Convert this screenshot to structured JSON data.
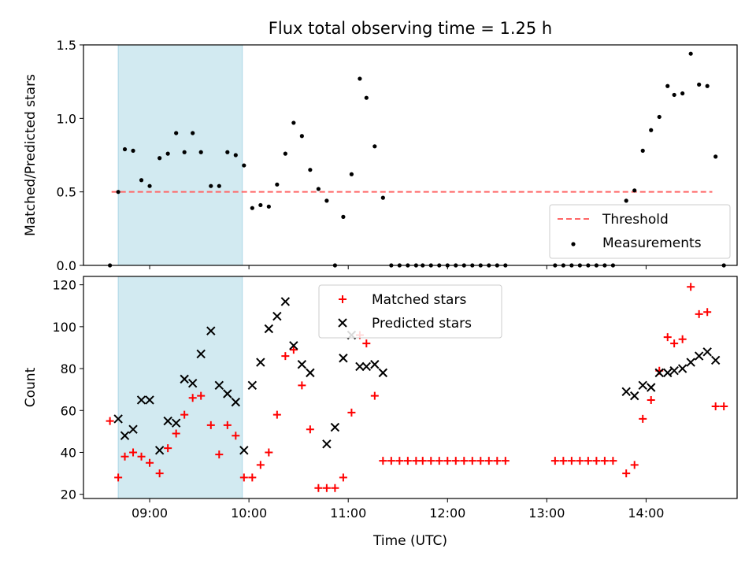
{
  "chart_data": [
    {
      "type": "scatter",
      "title": "Flux total observing time = 1.25 h",
      "ylabel": "Matched/Predicted stars",
      "xlabel": "",
      "xlim": [
        "08:20",
        "14:55"
      ],
      "ylim": [
        0,
        1.5
      ],
      "yticks": [
        "0.0",
        "0.5",
        "1.0",
        "1.5"
      ],
      "x_tick_labels": [],
      "shaded_span": [
        "08:41",
        "09:56"
      ],
      "shaded_color": "#add8e6",
      "threshold": {
        "name": "Threshold",
        "value": 0.5,
        "x": [
          "08:37",
          "14:40"
        ],
        "color": "#ff6666",
        "style": "dashed"
      },
      "legend": {
        "placement": "lower right",
        "entries": [
          "Threshold",
          "Measurements"
        ]
      },
      "series": [
        {
          "name": "Measurements",
          "marker": "dot",
          "color": "#000000",
          "points": [
            [
              "08:36",
              0.0
            ],
            [
              "08:41",
              0.5
            ],
            [
              "08:45",
              0.79
            ],
            [
              "08:50",
              0.78
            ],
            [
              "08:55",
              0.58
            ],
            [
              "09:00",
              0.54
            ],
            [
              "09:06",
              0.73
            ],
            [
              "09:11",
              0.76
            ],
            [
              "09:16",
              0.9
            ],
            [
              "09:21",
              0.77
            ],
            [
              "09:26",
              0.9
            ],
            [
              "09:31",
              0.77
            ],
            [
              "09:37",
              0.54
            ],
            [
              "09:42",
              0.54
            ],
            [
              "09:47",
              0.77
            ],
            [
              "09:52",
              0.75
            ],
            [
              "09:57",
              0.68
            ],
            [
              "10:02",
              0.39
            ],
            [
              "10:07",
              0.41
            ],
            [
              "10:12",
              0.4
            ],
            [
              "10:17",
              0.55
            ],
            [
              "10:22",
              0.76
            ],
            [
              "10:27",
              0.97
            ],
            [
              "10:32",
              0.88
            ],
            [
              "10:37",
              0.65
            ],
            [
              "10:42",
              0.52
            ],
            [
              "10:47",
              0.44
            ],
            [
              "10:52",
              0.0
            ],
            [
              "10:57",
              0.33
            ],
            [
              "11:02",
              0.62
            ],
            [
              "11:07",
              1.27
            ],
            [
              "11:11",
              1.14
            ],
            [
              "11:16",
              0.81
            ],
            [
              "11:21",
              0.46
            ],
            [
              "11:26",
              0.0
            ],
            [
              "11:31",
              0.0
            ],
            [
              "11:36",
              0.0
            ],
            [
              "11:41",
              0.0
            ],
            [
              "11:45",
              0.0
            ],
            [
              "11:50",
              0.0
            ],
            [
              "11:55",
              0.0
            ],
            [
              "12:00",
              0.0
            ],
            [
              "12:05",
              0.0
            ],
            [
              "12:10",
              0.0
            ],
            [
              "12:15",
              0.0
            ],
            [
              "12:20",
              0.0
            ],
            [
              "12:25",
              0.0
            ],
            [
              "12:30",
              0.0
            ],
            [
              "12:35",
              0.0
            ],
            [
              "13:05",
              0.0
            ],
            [
              "13:10",
              0.0
            ],
            [
              "13:15",
              0.0
            ],
            [
              "13:20",
              0.0
            ],
            [
              "13:25",
              0.0
            ],
            [
              "13:30",
              0.0
            ],
            [
              "13:35",
              0.0
            ],
            [
              "13:40",
              0.0
            ],
            [
              "13:48",
              0.44
            ],
            [
              "13:53",
              0.51
            ],
            [
              "13:58",
              0.78
            ],
            [
              "14:03",
              0.92
            ],
            [
              "14:08",
              1.01
            ],
            [
              "14:13",
              1.22
            ],
            [
              "14:17",
              1.16
            ],
            [
              "14:22",
              1.17
            ],
            [
              "14:27",
              1.44
            ],
            [
              "14:32",
              1.23
            ],
            [
              "14:37",
              1.22
            ],
            [
              "14:42",
              0.74
            ],
            [
              "14:47",
              0.0
            ]
          ]
        }
      ]
    },
    {
      "type": "scatter",
      "title": "",
      "ylabel": "Count",
      "xlabel": "Time (UTC)",
      "xlim": [
        "08:20",
        "14:55"
      ],
      "ylim": [
        18,
        124
      ],
      "yticks": [
        "20",
        "40",
        "60",
        "80",
        "100",
        "120"
      ],
      "x_tick_labels": [
        "09:00",
        "10:00",
        "11:00",
        "12:00",
        "13:00",
        "14:00"
      ],
      "shaded_span": [
        "08:41",
        "09:56"
      ],
      "shaded_color": "#add8e6",
      "legend": {
        "placement": "upper center",
        "entries": [
          "Matched stars",
          "Predicted stars"
        ]
      },
      "series": [
        {
          "name": "Matched stars",
          "marker": "plus",
          "color": "#ff0000",
          "points": [
            [
              "08:36",
              55
            ],
            [
              "08:41",
              28
            ],
            [
              "08:45",
              38
            ],
            [
              "08:50",
              40
            ],
            [
              "08:55",
              38
            ],
            [
              "09:00",
              35
            ],
            [
              "09:06",
              30
            ],
            [
              "09:11",
              42
            ],
            [
              "09:16",
              49
            ],
            [
              "09:21",
              58
            ],
            [
              "09:26",
              66
            ],
            [
              "09:31",
              67
            ],
            [
              "09:37",
              53
            ],
            [
              "09:42",
              39
            ],
            [
              "09:47",
              53
            ],
            [
              "09:52",
              48
            ],
            [
              "09:57",
              28
            ],
            [
              "10:02",
              28
            ],
            [
              "10:07",
              34
            ],
            [
              "10:12",
              40
            ],
            [
              "10:17",
              58
            ],
            [
              "10:22",
              86
            ],
            [
              "10:27",
              89
            ],
            [
              "10:32",
              72
            ],
            [
              "10:37",
              51
            ],
            [
              "10:42",
              23
            ],
            [
              "10:47",
              23
            ],
            [
              "10:52",
              23
            ],
            [
              "10:57",
              28
            ],
            [
              "11:02",
              59
            ],
            [
              "11:07",
              96
            ],
            [
              "11:11",
              92
            ],
            [
              "11:16",
              67
            ],
            [
              "11:21",
              36
            ],
            [
              "11:26",
              36
            ],
            [
              "11:31",
              36
            ],
            [
              "11:36",
              36
            ],
            [
              "11:41",
              36
            ],
            [
              "11:45",
              36
            ],
            [
              "11:50",
              36
            ],
            [
              "11:55",
              36
            ],
            [
              "12:00",
              36
            ],
            [
              "12:05",
              36
            ],
            [
              "12:10",
              36
            ],
            [
              "12:15",
              36
            ],
            [
              "12:20",
              36
            ],
            [
              "12:25",
              36
            ],
            [
              "12:30",
              36
            ],
            [
              "12:35",
              36
            ],
            [
              "13:05",
              36
            ],
            [
              "13:10",
              36
            ],
            [
              "13:15",
              36
            ],
            [
              "13:20",
              36
            ],
            [
              "13:25",
              36
            ],
            [
              "13:30",
              36
            ],
            [
              "13:35",
              36
            ],
            [
              "13:40",
              36
            ],
            [
              "13:48",
              30
            ],
            [
              "13:53",
              34
            ],
            [
              "13:58",
              56
            ],
            [
              "14:03",
              65
            ],
            [
              "14:08",
              79
            ],
            [
              "14:13",
              95
            ],
            [
              "14:17",
              92
            ],
            [
              "14:22",
              94
            ],
            [
              "14:27",
              119
            ],
            [
              "14:32",
              106
            ],
            [
              "14:37",
              107
            ],
            [
              "14:42",
              62
            ],
            [
              "14:47",
              62
            ]
          ]
        },
        {
          "name": "Predicted stars",
          "marker": "x",
          "color": "#000000",
          "points": [
            [
              "08:41",
              56
            ],
            [
              "08:45",
              48
            ],
            [
              "08:50",
              51
            ],
            [
              "08:55",
              65
            ],
            [
              "09:00",
              65
            ],
            [
              "09:06",
              41
            ],
            [
              "09:11",
              55
            ],
            [
              "09:16",
              54
            ],
            [
              "09:21",
              75
            ],
            [
              "09:26",
              73
            ],
            [
              "09:31",
              87
            ],
            [
              "09:37",
              98
            ],
            [
              "09:42",
              72
            ],
            [
              "09:47",
              68
            ],
            [
              "09:52",
              64
            ],
            [
              "09:57",
              41
            ],
            [
              "10:02",
              72
            ],
            [
              "10:07",
              83
            ],
            [
              "10:12",
              99
            ],
            [
              "10:17",
              105
            ],
            [
              "10:22",
              112
            ],
            [
              "10:27",
              91
            ],
            [
              "10:32",
              82
            ],
            [
              "10:37",
              78
            ],
            [
              "10:47",
              44
            ],
            [
              "10:52",
              52
            ],
            [
              "10:57",
              85
            ],
            [
              "11:02",
              96
            ],
            [
              "11:07",
              81
            ],
            [
              "11:11",
              81
            ],
            [
              "11:16",
              82
            ],
            [
              "11:21",
              78
            ],
            [
              "13:48",
              69
            ],
            [
              "13:53",
              67
            ],
            [
              "13:58",
              72
            ],
            [
              "14:03",
              71
            ],
            [
              "14:08",
              78
            ],
            [
              "14:13",
              78
            ],
            [
              "14:17",
              79
            ],
            [
              "14:22",
              80
            ],
            [
              "14:27",
              83
            ],
            [
              "14:32",
              86
            ],
            [
              "14:37",
              88
            ],
            [
              "14:42",
              84
            ]
          ]
        }
      ]
    }
  ]
}
